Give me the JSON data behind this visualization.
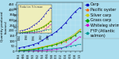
{
  "background_color": "#aaddee",
  "years": [
    1984,
    1986,
    1988,
    1990,
    1992,
    1994,
    1996,
    1998,
    2000,
    2002,
    2004,
    2006,
    2008,
    2010
  ],
  "series": [
    {
      "name": "Carp",
      "color": "#0000bb",
      "marker": "s",
      "data": [
        3.5,
        4.2,
        5.1,
        6.5,
        8.0,
        10.5,
        13.5,
        16.0,
        19.0,
        23.0,
        27.5,
        33.0,
        38.0,
        42.0
      ]
    },
    {
      "name": "Pacific oyster",
      "color": "#ff6600",
      "marker": "^",
      "data": [
        0.5,
        0.7,
        1.0,
        1.8,
        3.2,
        4.2,
        5.0,
        5.8,
        6.5,
        8.0,
        9.5,
        12.0,
        15.5,
        20.0
      ]
    },
    {
      "name": "Silver carp",
      "color": "#cccc00",
      "marker": "o",
      "data": [
        1.0,
        1.3,
        1.7,
        2.3,
        3.0,
        4.0,
        5.2,
        6.3,
        7.8,
        9.5,
        11.5,
        14.0,
        17.0,
        21.0
      ]
    },
    {
      "name": "Grass carp",
      "color": "#00aa00",
      "marker": "D",
      "data": [
        0.8,
        1.0,
        1.4,
        1.9,
        2.6,
        3.5,
        4.5,
        5.5,
        6.8,
        8.5,
        10.5,
        13.0,
        15.5,
        19.0
      ]
    },
    {
      "name": "Whiteleg shrimp",
      "color": "#cc00cc",
      "marker": "v",
      "data": [
        0.1,
        0.15,
        0.2,
        0.3,
        0.5,
        0.8,
        1.1,
        1.5,
        2.0,
        2.8,
        4.5,
        7.0,
        10.5,
        14.0
      ]
    },
    {
      "name": "FYP (Atlantic\nsalmon)",
      "color": "#009999",
      "marker": "p",
      "data": [
        0.3,
        0.5,
        0.8,
        1.2,
        1.5,
        1.8,
        2.1,
        2.5,
        3.0,
        3.5,
        4.2,
        5.0,
        5.8,
        6.8
      ]
    }
  ],
  "ylabel": "Quantity produced\n(tonnes)",
  "ylim": [
    0,
    47
  ],
  "ytick_vals": [
    0,
    5,
    10,
    15,
    20,
    25,
    30,
    35,
    40,
    45
  ],
  "ytick_labels": [
    "0",
    "50",
    "100",
    "150",
    "200",
    "250",
    "300",
    "350",
    "400",
    "450"
  ],
  "xlim": [
    1983,
    2011
  ],
  "legend_names": [
    "Carp",
    "Pacific oyster",
    "Silver carp",
    "Grass carp",
    "Whiteleg shrimp",
    "FYP (Atlantic\nsalmon)"
  ],
  "legend_colors": [
    "#0000bb",
    "#ff6600",
    "#cccc00",
    "#00aa00",
    "#cc00cc",
    "#009999"
  ],
  "legend_markers": [
    "s",
    "^",
    "o",
    "D",
    "v",
    "p"
  ],
  "inset_bg": "#eeeebb",
  "axis_fontsize": 3.0,
  "tick_fontsize": 2.8,
  "legend_fontsize": 3.5
}
